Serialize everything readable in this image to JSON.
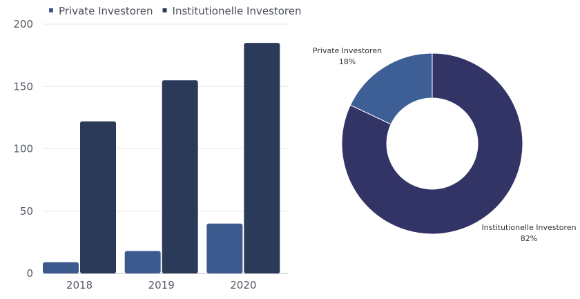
{
  "chart_data": [
    {
      "type": "bar",
      "title": "",
      "xlabel": "",
      "ylabel": "",
      "categories": [
        "2018",
        "2019",
        "2020"
      ],
      "ylim": [
        0,
        200
      ],
      "yticks": [
        0,
        50,
        100,
        150,
        200
      ],
      "grid": true,
      "legend": "top-left",
      "series": [
        {
          "name": "Private Investoren",
          "values": [
            9,
            18,
            40
          ],
          "color": "#3d5a8e"
        },
        {
          "name": "Institutionelle Investoren",
          "values": [
            122,
            155,
            185
          ],
          "color": "#2a3a58"
        }
      ]
    },
    {
      "type": "pie",
      "title": "",
      "donut": true,
      "slices": [
        {
          "name": "Private Investoren",
          "label": "Private Investoren",
          "value_label": "18%",
          "value": 18,
          "color": "#3d5f96"
        },
        {
          "name": "Institutionelle Investoren",
          "label": "Institutionelle Investoren",
          "value_label": "82%",
          "value": 82,
          "color": "#333466"
        }
      ]
    }
  ]
}
